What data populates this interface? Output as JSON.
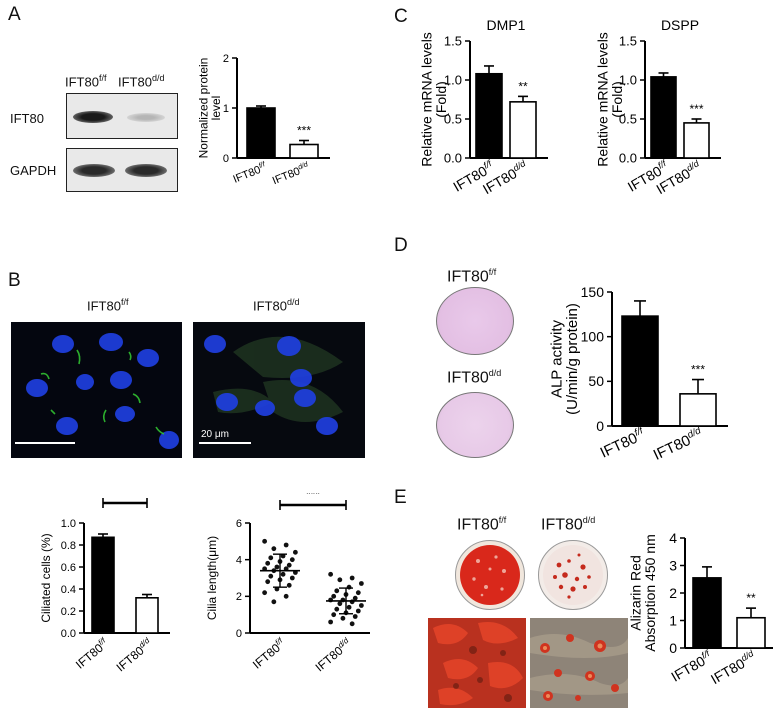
{
  "panels": {
    "A": {
      "letter": "A",
      "blot_header_1": "IFT80",
      "blot_header_1_sup": "f/f",
      "blot_header_2": "IFT80",
      "blot_header_2_sup": "d/d",
      "row_labels": [
        "IFT80",
        "GAPDH"
      ]
    },
    "B": {
      "letter": "B",
      "image_label_1": "IFT80",
      "image_label_1_sup": "f/f",
      "image_label_2": "IFT80",
      "image_label_2_sup": "d/d",
      "scale_label": "20 μm"
    },
    "C": {
      "letter": "C"
    },
    "D": {
      "letter": "D",
      "dish_label_1": "IFT80",
      "dish_label_1_sup": "f/f",
      "dish_label_2": "IFT80",
      "dish_label_2_sup": "d/d"
    },
    "E": {
      "letter": "E",
      "dish_label_1": "IFT80",
      "dish_label_1_sup": "f/f",
      "dish_label_2": "IFT80",
      "dish_label_2_sup": "d/d"
    }
  },
  "colors": {
    "bar_fill_ff": "#000000",
    "bar_fill_dd": "#ffffff",
    "nucleus_blue": "#1f3fe0",
    "cilia_green": "#33cc33",
    "alp_stain": "#e8c6e6",
    "alizarin_red": "#d9281b"
  },
  "chart_data": [
    {
      "id": "A",
      "type": "bar",
      "categories": [
        "IFT80",
        "IFT80"
      ],
      "category_sups": [
        "f/f",
        "d/d"
      ],
      "values": [
        1.0,
        0.27
      ],
      "errors": [
        0.04,
        0.08
      ],
      "ylabel": "Normalized protein level",
      "ylim": [
        0,
        2
      ],
      "yticks": [
        "0",
        "1",
        "2"
      ],
      "annotations": [
        {
          "index": 1,
          "text": "***"
        }
      ],
      "bracket": false
    },
    {
      "id": "C-DMP1",
      "type": "bar",
      "title": "DMP1",
      "categories": [
        "IFT80",
        "IFT80"
      ],
      "category_sups": [
        "f/f",
        "d/d"
      ],
      "values": [
        1.08,
        0.72
      ],
      "errors": [
        0.1,
        0.07
      ],
      "ylabel": "Relative mRNA levels (Fold)",
      "ylim": [
        0,
        1.5
      ],
      "yticks": [
        "0.0",
        "0.5",
        "1.0",
        "1.5"
      ],
      "annotations": [
        {
          "index": 1,
          "text": "**"
        }
      ],
      "bracket": false
    },
    {
      "id": "C-DSPP",
      "type": "bar",
      "title": "DSPP",
      "categories": [
        "IFT80",
        "IFT80"
      ],
      "category_sups": [
        "f/f",
        "d/d"
      ],
      "values": [
        1.04,
        0.45
      ],
      "errors": [
        0.05,
        0.05
      ],
      "ylabel": "Relative mRNA levels (Fold)",
      "ylim": [
        0,
        1.5
      ],
      "yticks": [
        "0.0",
        "0.5",
        "1.0",
        "1.5"
      ],
      "annotations": [
        {
          "index": 1,
          "text": "***"
        }
      ],
      "bracket": false
    },
    {
      "id": "B-ciliated",
      "type": "bar",
      "categories": [
        "IFT80",
        "IFT80"
      ],
      "category_sups": [
        "f/f",
        "d/d"
      ],
      "values": [
        0.87,
        0.32
      ],
      "errors": [
        0.03,
        0.03
      ],
      "ylabel": "Ciliated cells (%)",
      "ylim": [
        0,
        1.0
      ],
      "yticks": [
        "0.0",
        "0.2",
        "0.4",
        "0.6",
        "0.8",
        "1.0"
      ],
      "annotations": [
        {
          "index": -1,
          "text": "***"
        }
      ],
      "bracket": true
    },
    {
      "id": "B-length",
      "type": "scatter",
      "categories": [
        "IFT80",
        "IFT80"
      ],
      "category_sups": [
        "f/f",
        "d/d"
      ],
      "means": [
        3.4,
        1.75
      ],
      "sds": [
        0.9,
        0.7
      ],
      "ylabel": "Cilia length(μm)",
      "ylim": [
        0,
        6
      ],
      "yticks": [
        "0",
        "2",
        "4",
        "6"
      ],
      "annotations": [
        {
          "index": -1,
          "text": "***"
        }
      ],
      "bracket": true,
      "series": [
        {
          "name": "IFT80 f/f",
          "values": [
            5.0,
            4.8,
            4.6,
            4.4,
            4.2,
            4.1,
            4.0,
            3.9,
            3.8,
            3.7,
            3.6,
            3.5,
            3.5,
            3.4,
            3.3,
            3.2,
            3.1,
            3.0,
            2.9,
            2.8,
            2.6,
            2.4,
            2.2,
            2.0,
            1.7
          ]
        },
        {
          "name": "IFT80 d/d",
          "values": [
            3.2,
            3.0,
            2.9,
            2.7,
            2.5,
            2.3,
            2.2,
            2.1,
            2.0,
            1.9,
            1.8,
            1.8,
            1.7,
            1.6,
            1.5,
            1.4,
            1.3,
            1.2,
            1.1,
            1.0,
            0.9,
            0.8,
            0.6,
            0.5
          ]
        }
      ]
    },
    {
      "id": "D",
      "type": "bar",
      "categories": [
        "IFT80",
        "IFT80"
      ],
      "category_sups": [
        "f/f",
        "d/d"
      ],
      "values": [
        123,
        36
      ],
      "errors": [
        17,
        16
      ],
      "ylabel": "ALP activity (U/min/g protein)",
      "ylim": [
        0,
        150
      ],
      "yticks": [
        "0",
        "50",
        "100",
        "150"
      ],
      "annotations": [
        {
          "index": 1,
          "text": "***"
        }
      ],
      "bracket": false
    },
    {
      "id": "E",
      "type": "bar",
      "categories": [
        "IFT80",
        "IFT80"
      ],
      "category_sups": [
        "f/f",
        "d/d"
      ],
      "values": [
        2.55,
        1.1
      ],
      "errors": [
        0.4,
        0.35
      ],
      "ylabel": "Alizarin Red Absorption 450 nm",
      "ylim": [
        0,
        4
      ],
      "yticks": [
        "0",
        "1",
        "2",
        "3",
        "4"
      ],
      "annotations": [
        {
          "index": 1,
          "text": "**"
        }
      ],
      "bracket": false
    }
  ]
}
